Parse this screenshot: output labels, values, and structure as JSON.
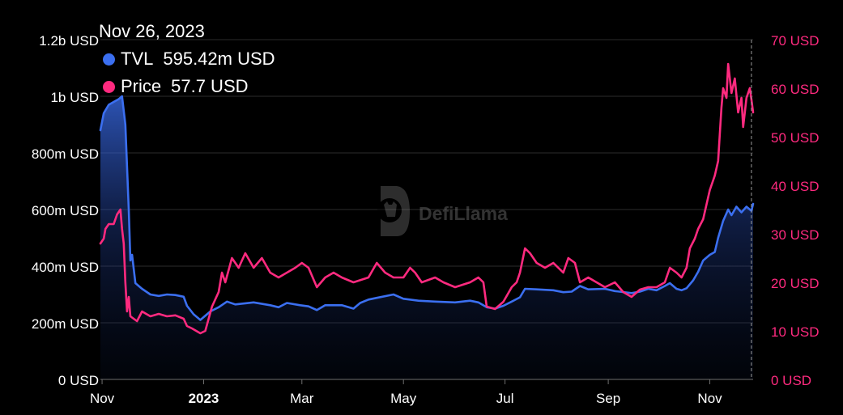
{
  "tooltip": {
    "date": "Nov 26, 2023",
    "tvl_label": "TVL",
    "tvl_value": "595.42m USD",
    "price_label": "Price",
    "price_value": "57.7 USD"
  },
  "watermark": {
    "text": "DefiLlama",
    "icon": "llama-logo-icon"
  },
  "colors": {
    "background": "#000000",
    "tvl": "#3b6ff0",
    "price": "#ff2a7f",
    "grid": "#2c2c2c",
    "left_axis_text": "#ffffff",
    "right_axis_text": "#ff2a7f"
  },
  "chart_data": {
    "type": "line",
    "x_ticks": [
      {
        "label": "Nov",
        "date": "2022-11-01",
        "bold": false
      },
      {
        "label": "2023",
        "date": "2023-01-01",
        "bold": true
      },
      {
        "label": "Mar",
        "date": "2023-03-01",
        "bold": false
      },
      {
        "label": "May",
        "date": "2023-05-01",
        "bold": false
      },
      {
        "label": "Jul",
        "date": "2023-07-01",
        "bold": false
      },
      {
        "label": "Sep",
        "date": "2023-09-01",
        "bold": false
      },
      {
        "label": "Nov",
        "date": "2023-11-01",
        "bold": false
      }
    ],
    "x_range": [
      "2022-10-31",
      "2023-11-27"
    ],
    "y_left": {
      "range": [
        0,
        1200000000
      ],
      "ticks": [
        {
          "value": 0,
          "label": "0 USD"
        },
        {
          "value": 200000000,
          "label": "200m USD"
        },
        {
          "value": 400000000,
          "label": "400m USD"
        },
        {
          "value": 600000000,
          "label": "600m USD"
        },
        {
          "value": 800000000,
          "label": "800m USD"
        },
        {
          "value": 1000000000,
          "label": "1b USD"
        },
        {
          "value": 1200000000,
          "label": "1.2b USD"
        }
      ]
    },
    "y_right": {
      "range": [
        0,
        70
      ],
      "ticks": [
        {
          "value": 0,
          "label": "0 USD"
        },
        {
          "value": 10,
          "label": "10 USD"
        },
        {
          "value": 20,
          "label": "20 USD"
        },
        {
          "value": 30,
          "label": "30 USD"
        },
        {
          "value": 40,
          "label": "40 USD"
        },
        {
          "value": 50,
          "label": "50 USD"
        },
        {
          "value": 60,
          "label": "60 USD"
        },
        {
          "value": 70,
          "label": "70 USD"
        }
      ]
    },
    "grid": true,
    "crosshair_date": "2023-11-26",
    "series": [
      {
        "name": "TVL",
        "axis": "left",
        "area": true,
        "points": [
          [
            "2022-10-31",
            880000000
          ],
          [
            "2022-11-02",
            940000000
          ],
          [
            "2022-11-05",
            970000000
          ],
          [
            "2022-11-08",
            980000000
          ],
          [
            "2022-11-11",
            990000000
          ],
          [
            "2022-11-13",
            1000000000
          ],
          [
            "2022-11-15",
            900000000
          ],
          [
            "2022-11-17",
            600000000
          ],
          [
            "2022-11-18",
            420000000
          ],
          [
            "2022-11-19",
            440000000
          ],
          [
            "2022-11-21",
            340000000
          ],
          [
            "2022-11-25",
            320000000
          ],
          [
            "2022-11-30",
            300000000
          ],
          [
            "2022-12-05",
            295000000
          ],
          [
            "2022-12-10",
            300000000
          ],
          [
            "2022-12-15",
            298000000
          ],
          [
            "2022-12-20",
            292000000
          ],
          [
            "2022-12-22",
            260000000
          ],
          [
            "2022-12-26",
            230000000
          ],
          [
            "2022-12-30",
            210000000
          ],
          [
            "2023-01-05",
            240000000
          ],
          [
            "2023-01-10",
            255000000
          ],
          [
            "2023-01-15",
            275000000
          ],
          [
            "2023-01-20",
            265000000
          ],
          [
            "2023-01-31",
            272000000
          ],
          [
            "2023-02-10",
            262000000
          ],
          [
            "2023-02-15",
            255000000
          ],
          [
            "2023-02-20",
            270000000
          ],
          [
            "2023-02-28",
            262000000
          ],
          [
            "2023-03-05",
            258000000
          ],
          [
            "2023-03-10",
            245000000
          ],
          [
            "2023-03-15",
            262000000
          ],
          [
            "2023-03-25",
            262000000
          ],
          [
            "2023-04-01",
            250000000
          ],
          [
            "2023-04-05",
            270000000
          ],
          [
            "2023-04-10",
            282000000
          ],
          [
            "2023-04-15",
            288000000
          ],
          [
            "2023-04-25",
            300000000
          ],
          [
            "2023-05-01",
            285000000
          ],
          [
            "2023-05-10",
            278000000
          ],
          [
            "2023-05-20",
            275000000
          ],
          [
            "2023-06-01",
            272000000
          ],
          [
            "2023-06-10",
            278000000
          ],
          [
            "2023-06-15",
            272000000
          ],
          [
            "2023-06-20",
            255000000
          ],
          [
            "2023-06-25",
            250000000
          ],
          [
            "2023-06-30",
            260000000
          ],
          [
            "2023-07-05",
            275000000
          ],
          [
            "2023-07-10",
            290000000
          ],
          [
            "2023-07-13",
            320000000
          ],
          [
            "2023-07-20",
            318000000
          ],
          [
            "2023-07-30",
            315000000
          ],
          [
            "2023-08-05",
            308000000
          ],
          [
            "2023-08-10",
            310000000
          ],
          [
            "2023-08-15",
            330000000
          ],
          [
            "2023-08-20",
            318000000
          ],
          [
            "2023-08-30",
            320000000
          ],
          [
            "2023-09-05",
            312000000
          ],
          [
            "2023-09-15",
            305000000
          ],
          [
            "2023-09-20",
            310000000
          ],
          [
            "2023-09-25",
            320000000
          ],
          [
            "2023-09-30",
            315000000
          ],
          [
            "2023-10-05",
            330000000
          ],
          [
            "2023-10-08",
            340000000
          ],
          [
            "2023-10-12",
            320000000
          ],
          [
            "2023-10-15",
            315000000
          ],
          [
            "2023-10-18",
            322000000
          ],
          [
            "2023-10-22",
            350000000
          ],
          [
            "2023-10-25",
            380000000
          ],
          [
            "2023-10-28",
            420000000
          ],
          [
            "2023-11-01",
            440000000
          ],
          [
            "2023-11-04",
            450000000
          ],
          [
            "2023-11-06",
            500000000
          ],
          [
            "2023-11-09",
            560000000
          ],
          [
            "2023-11-12",
            600000000
          ],
          [
            "2023-11-14",
            580000000
          ],
          [
            "2023-11-17",
            610000000
          ],
          [
            "2023-11-20",
            590000000
          ],
          [
            "2023-11-23",
            610000000
          ],
          [
            "2023-11-26",
            595420000
          ],
          [
            "2023-11-27",
            620000000
          ]
        ]
      },
      {
        "name": "Price",
        "axis": "right",
        "area": false,
        "points": [
          [
            "2022-10-31",
            28
          ],
          [
            "2022-11-02",
            29
          ],
          [
            "2022-11-03",
            31
          ],
          [
            "2022-11-05",
            32
          ],
          [
            "2022-11-08",
            32
          ],
          [
            "2022-11-10",
            34
          ],
          [
            "2022-11-12",
            35
          ],
          [
            "2022-11-13",
            31
          ],
          [
            "2022-11-14",
            28
          ],
          [
            "2022-11-15",
            20
          ],
          [
            "2022-11-16",
            14
          ],
          [
            "2022-11-17",
            17
          ],
          [
            "2022-11-18",
            13
          ],
          [
            "2022-11-22",
            12
          ],
          [
            "2022-11-25",
            14
          ],
          [
            "2022-11-30",
            13
          ],
          [
            "2022-12-05",
            13.5
          ],
          [
            "2022-12-10",
            13
          ],
          [
            "2022-12-15",
            13.2
          ],
          [
            "2022-12-20",
            12.5
          ],
          [
            "2022-12-22",
            11
          ],
          [
            "2022-12-25",
            10.5
          ],
          [
            "2022-12-30",
            9.5
          ],
          [
            "2023-01-02",
            10
          ],
          [
            "2023-01-06",
            15
          ],
          [
            "2023-01-10",
            18
          ],
          [
            "2023-01-12",
            22
          ],
          [
            "2023-01-14",
            20
          ],
          [
            "2023-01-18",
            25
          ],
          [
            "2023-01-22",
            23
          ],
          [
            "2023-01-26",
            26
          ],
          [
            "2023-01-31",
            23
          ],
          [
            "2023-02-05",
            25
          ],
          [
            "2023-02-10",
            22
          ],
          [
            "2023-02-15",
            21
          ],
          [
            "2023-02-20",
            22
          ],
          [
            "2023-02-25",
            23
          ],
          [
            "2023-03-01",
            24
          ],
          [
            "2023-03-05",
            23
          ],
          [
            "2023-03-10",
            19
          ],
          [
            "2023-03-15",
            21
          ],
          [
            "2023-03-20",
            22
          ],
          [
            "2023-03-25",
            21
          ],
          [
            "2023-04-01",
            20
          ],
          [
            "2023-04-10",
            21
          ],
          [
            "2023-04-15",
            24
          ],
          [
            "2023-04-20",
            22
          ],
          [
            "2023-04-25",
            21
          ],
          [
            "2023-05-01",
            21
          ],
          [
            "2023-05-05",
            23
          ],
          [
            "2023-05-08",
            22
          ],
          [
            "2023-05-12",
            20
          ],
          [
            "2023-05-20",
            21
          ],
          [
            "2023-05-25",
            20
          ],
          [
            "2023-06-01",
            19
          ],
          [
            "2023-06-10",
            20
          ],
          [
            "2023-06-15",
            21
          ],
          [
            "2023-06-18",
            20
          ],
          [
            "2023-06-20",
            15
          ],
          [
            "2023-06-25",
            14.5
          ],
          [
            "2023-06-30",
            16
          ],
          [
            "2023-07-05",
            19
          ],
          [
            "2023-07-08",
            20
          ],
          [
            "2023-07-10",
            22
          ],
          [
            "2023-07-13",
            27
          ],
          [
            "2023-07-16",
            26
          ],
          [
            "2023-07-20",
            24
          ],
          [
            "2023-07-25",
            23
          ],
          [
            "2023-07-30",
            24
          ],
          [
            "2023-08-05",
            22
          ],
          [
            "2023-08-08",
            25
          ],
          [
            "2023-08-12",
            24
          ],
          [
            "2023-08-15",
            20
          ],
          [
            "2023-08-20",
            21
          ],
          [
            "2023-08-25",
            20
          ],
          [
            "2023-08-30",
            19
          ],
          [
            "2023-09-05",
            20
          ],
          [
            "2023-09-10",
            18
          ],
          [
            "2023-09-15",
            17
          ],
          [
            "2023-09-20",
            18.5
          ],
          [
            "2023-09-25",
            19
          ],
          [
            "2023-09-30",
            19
          ],
          [
            "2023-10-05",
            20
          ],
          [
            "2023-10-08",
            23
          ],
          [
            "2023-10-12",
            22
          ],
          [
            "2023-10-15",
            21
          ],
          [
            "2023-10-18",
            23
          ],
          [
            "2023-10-20",
            27
          ],
          [
            "2023-10-23",
            29
          ],
          [
            "2023-10-25",
            31
          ],
          [
            "2023-10-28",
            33
          ],
          [
            "2023-11-01",
            39
          ],
          [
            "2023-11-04",
            42
          ],
          [
            "2023-11-06",
            45
          ],
          [
            "2023-11-08",
            56
          ],
          [
            "2023-11-09",
            60
          ],
          [
            "2023-11-11",
            58
          ],
          [
            "2023-11-12",
            65
          ],
          [
            "2023-11-14",
            59
          ],
          [
            "2023-11-16",
            62
          ],
          [
            "2023-11-18",
            55
          ],
          [
            "2023-11-20",
            58
          ],
          [
            "2023-11-21",
            52
          ],
          [
            "2023-11-23",
            58
          ],
          [
            "2023-11-25",
            60
          ],
          [
            "2023-11-26",
            57.7
          ],
          [
            "2023-11-27",
            55
          ]
        ]
      }
    ]
  }
}
